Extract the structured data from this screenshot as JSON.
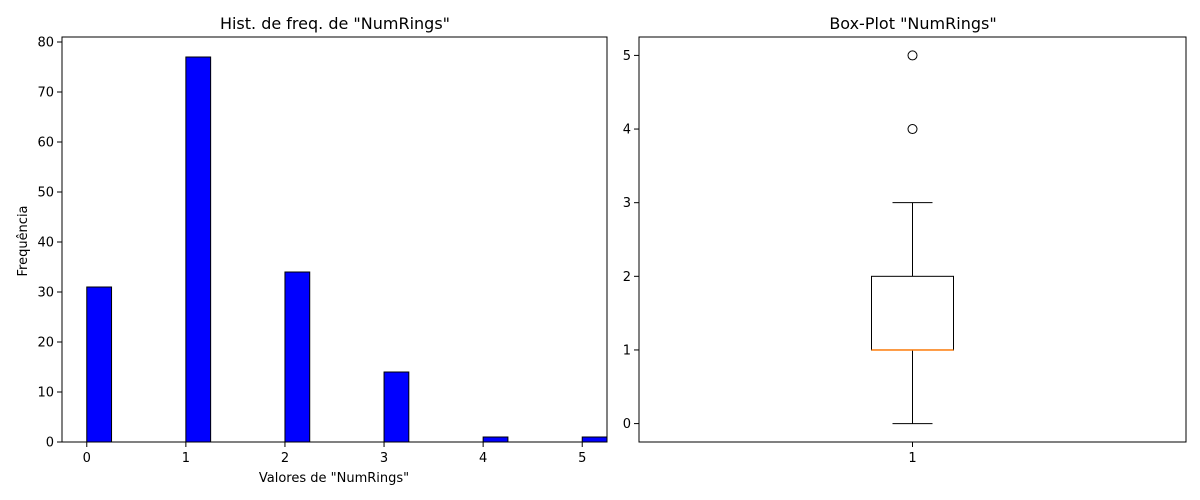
{
  "chart_data": [
    {
      "type": "bar",
      "title": "Hist. de freq. de \"NumRings\"",
      "xlabel": "Valores de \"NumRings\"",
      "ylabel": "Frequência",
      "x": [
        0,
        1,
        2,
        3,
        4,
        5
      ],
      "values": [
        31,
        77,
        34,
        14,
        1,
        1
      ],
      "bin_width": 0.25,
      "xlim": [
        -0.25,
        5.25
      ],
      "ylim": [
        0,
        81
      ],
      "xticks": [
        0,
        1,
        2,
        3,
        4,
        5
      ],
      "yticks": [
        0,
        10,
        20,
        30,
        40,
        50,
        60,
        70,
        80
      ],
      "bar_color": "#0000ff",
      "edge_color": "#000000"
    },
    {
      "type": "box",
      "title": "Box-Plot \"NumRings\"",
      "categories": [
        "1"
      ],
      "whisker_low": 0,
      "q1": 1,
      "median": 1,
      "q3": 2,
      "whisker_high": 3,
      "outliers": [
        4,
        5
      ],
      "ylim": [
        -0.25,
        5.25
      ],
      "yticks": [
        0,
        1,
        2,
        3,
        4,
        5
      ],
      "median_color": "#ff7f0e"
    }
  ]
}
